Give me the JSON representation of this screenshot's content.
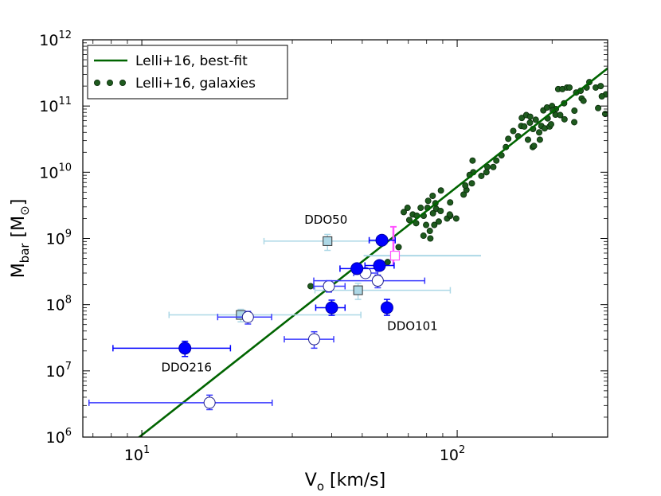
{
  "chart_data": {
    "type": "scatter",
    "xscale": "log",
    "yscale": "log",
    "xlim": [
      6.5,
      300
    ],
    "ylim": [
      1000000,
      1000000000000
    ],
    "xlabel": {
      "main": "V",
      "sub": "o",
      "rest": " [km/s]"
    },
    "ylabel": {
      "main": "M",
      "sub": "bar",
      "rest": " [M",
      "sym": "⊙",
      "end": "]"
    },
    "x_ticks": [
      {
        "value": 10,
        "base": "10",
        "exp": "1"
      },
      {
        "value": 100,
        "base": "10",
        "exp": "2"
      }
    ],
    "y_ticks": [
      {
        "value": 1000000,
        "base": "10",
        "exp": "6"
      },
      {
        "value": 10000000,
        "base": "10",
        "exp": "7"
      },
      {
        "value": 100000000,
        "base": "10",
        "exp": "8"
      },
      {
        "value": 1000000000,
        "base": "10",
        "exp": "9"
      },
      {
        "value": 10000000000,
        "base": "10",
        "exp": "10"
      },
      {
        "value": 100000000000,
        "base": "10",
        "exp": "11"
      },
      {
        "value": 1000000000000,
        "base": "10",
        "exp": "12"
      }
    ],
    "legend": {
      "position": "top-left",
      "entries": [
        {
          "label": "Lelli+16, best-fit",
          "marker": "line",
          "color": "#006400"
        },
        {
          "label": "Lelli+16, galaxies",
          "marker": "dots",
          "color": "#1e5a1e"
        }
      ]
    },
    "fit_line": {
      "name": "Lelli+16, best-fit",
      "color": "#006400",
      "slope": 3.75,
      "intercept": 2.28
    },
    "series": [
      {
        "name": "Lelli+16, galaxies",
        "color": "#1e5a1e",
        "edge": "#0a2a0a",
        "points": [
          [
            34.3,
            190000000.0
          ],
          [
            65.2,
            740000000.0
          ],
          [
            60.2,
            440000000.0
          ],
          [
            67.7,
            2500000000.0
          ],
          [
            69.6,
            2900000000.0
          ],
          [
            72.3,
            2300000000.0
          ],
          [
            74.5,
            2200000000.0
          ],
          [
            70.5,
            1900000000.0
          ],
          [
            74.1,
            1700000000.0
          ],
          [
            76.6,
            2900000000.0
          ],
          [
            79.7,
            1600000000.0
          ],
          [
            80.9,
            3700000000.0
          ],
          [
            85.3,
            3400000000.0
          ],
          [
            83.6,
            4400000000.0
          ],
          [
            88.8,
            5300000000.0
          ],
          [
            80.5,
            2900000000.0
          ],
          [
            78.3,
            2200000000.0
          ],
          [
            85.8,
            2800000000.0
          ],
          [
            88.6,
            2600000000.0
          ],
          [
            95.0,
            3500000000.0
          ],
          [
            92.9,
            2000000000.0
          ],
          [
            83.8,
            2400000000.0
          ],
          [
            81.9,
            1300000000.0
          ],
          [
            78.2,
            1100000000.0
          ],
          [
            82.2,
            1000000000.0
          ],
          [
            84.6,
            1600000000.0
          ],
          [
            87.4,
            1800000000.0
          ],
          [
            95.1,
            2200000000.0
          ],
          [
            94.7,
            2300000000.0
          ],
          [
            99.3,
            2000000000.0
          ],
          [
            104.8,
            4600000000.0
          ],
          [
            107.0,
            5400000000.0
          ],
          [
            106.1,
            6300000000.0
          ],
          [
            111.3,
            6800000000.0
          ],
          [
            112.5,
            10000000000.0
          ],
          [
            109.5,
            9100000000.0
          ],
          [
            111.9,
            15000000000.0
          ],
          [
            119.3,
            8800000000.0
          ],
          [
            124.7,
            12000000000.0
          ],
          [
            123.8,
            10000000000.0
          ],
          [
            130.2,
            12000000000.0
          ],
          [
            133.1,
            15000000000.0
          ],
          [
            138.2,
            18000000000.0
          ],
          [
            142.7,
            24000000000.0
          ],
          [
            145.2,
            32000000000.0
          ],
          [
            150.6,
            42000000000.0
          ],
          [
            156.1,
            35000000000.0
          ],
          [
            159.6,
            50000000000.0
          ],
          [
            160.3,
            66000000000.0
          ],
          [
            163.2,
            49000000000.0
          ],
          [
            165.6,
            73000000000.0
          ],
          [
            167.7,
            31000000000.0
          ],
          [
            170.1,
            56000000000.0
          ],
          [
            170.4,
            69000000000.0
          ],
          [
            173.6,
            24000000000.0
          ],
          [
            174.0,
            45000000000.0
          ],
          [
            175.2,
            25000000000.0
          ],
          [
            177.5,
            62000000000.0
          ],
          [
            182.0,
            40000000000.0
          ],
          [
            182.9,
            31000000000.0
          ],
          [
            184.9,
            50000000000.0
          ],
          [
            187.6,
            86000000000.0
          ],
          [
            189.4,
            46000000000.0
          ],
          [
            192.6,
            95000000000.0
          ],
          [
            193.6,
            65000000000.0
          ],
          [
            196.4,
            49000000000.0
          ],
          [
            198.5,
            53000000000.0
          ],
          [
            199.9,
            100000000000.0
          ],
          [
            205.0,
            74000000000.0
          ],
          [
            205.6,
            90000000000.0
          ],
          [
            209.1,
            180000000000.0
          ],
          [
            212.2,
            73000000000.0
          ],
          [
            215.6,
            180000000000.0
          ],
          [
            218.3,
            110000000000.0
          ],
          [
            222.9,
            190000000000.0
          ],
          [
            227.0,
            190000000000.0
          ],
          [
            235.1,
            57000000000.0
          ],
          [
            235.4,
            85000000000.0
          ],
          [
            238.4,
            160000000000.0
          ],
          [
            246.3,
            170000000000.0
          ],
          [
            248.2,
            130000000000.0
          ],
          [
            251.5,
            120000000000.0
          ],
          [
            257.3,
            190000000000.0
          ],
          [
            262.5,
            230000000000.0
          ],
          [
            275.0,
            190000000000.0
          ],
          [
            279.9,
            93000000000.0
          ],
          [
            285.1,
            200000000000.0
          ],
          [
            296.2,
            150000000000.0
          ],
          [
            294.7,
            76000000000.0
          ],
          [
            287.5,
            140000000000.0
          ],
          [
            218.9,
            63000000000.0
          ],
          [
            201.0,
            86000000000.0
          ]
        ]
      },
      {
        "name": "filled blue",
        "color": "#0000ff",
        "points": [
          {
            "x": 13.7,
            "y": 22000000.0,
            "xlo": 8.1,
            "xhi": 19.1,
            "ylo": 16500000.0,
            "yhi": 28000000.0
          },
          {
            "x": 40.0,
            "y": 90000000.0,
            "xlo": 35.6,
            "xhi": 44.1,
            "ylo": 69000000.0,
            "yhi": 117000000.0
          },
          {
            "x": 48.1,
            "y": 350000000.0,
            "xlo": 42.5,
            "xhi": 55.3
          },
          {
            "x": 56.7,
            "y": 390000000.0,
            "xlo": 51.0,
            "xhi": 63.1
          },
          {
            "x": 57.7,
            "y": 940000000.0,
            "xlo": 52.6,
            "xhi": 63.6
          },
          {
            "x": 59.9,
            "y": 90000000.0,
            "ylo": 69000000.0,
            "yhi": 120000000.0
          }
        ]
      },
      {
        "name": "open circles",
        "color": "#3a3aff",
        "points": [
          {
            "x": 16.4,
            "y": 3300000.0,
            "xlo": 6.8,
            "xhi": 25.9,
            "ylo": 2600000.0,
            "yhi": 4300000.0
          },
          {
            "x": 21.7,
            "y": 65000000.0,
            "xlo": 17.4,
            "xhi": 25.8,
            "ylo": 51000000.0,
            "yhi": 79000000.0
          },
          {
            "x": 35.2,
            "y": 30000000.0,
            "xlo": 28.3,
            "xhi": 40.6,
            "ylo": 22000000.0,
            "yhi": 39000000.0
          },
          {
            "x": 39.2,
            "y": 190000000.0,
            "xlo": 35.1,
            "xhi": 44.1,
            "ylo": 155000000.0,
            "yhi": 230000000.0
          },
          {
            "x": 51.2,
            "y": 300000000.0,
            "xlo": 47.0,
            "xhi": 56.0
          },
          {
            "x": 56.0,
            "y": 230000000.0,
            "xlo": 35.1,
            "xhi": 78.9,
            "ylo": 180000000.0,
            "yhi": 280000000.0
          }
        ]
      },
      {
        "name": "light-blue squares",
        "color": "#add8e6",
        "points": [
          {
            "x": 20.6,
            "y": 70000000.0,
            "xlo": 12.2,
            "xhi": 49.5,
            "ylo": 55000000.0,
            "yhi": 85000000.0
          },
          {
            "x": 38.8,
            "y": 910000000.0,
            "xlo": 24.4,
            "xhi": 59.9,
            "ylo": 660000000.0,
            "yhi": 1150000000.0
          },
          {
            "x": 48.5,
            "y": 165000000.0,
            "xlo": 35.4,
            "xhi": 95.1,
            "ylo": 120000000.0,
            "yhi": 210000000.0
          }
        ]
      },
      {
        "name": "magenta square",
        "color": "#ff55ff",
        "points": [
          {
            "x": 63.5,
            "y": 550000000.0,
            "xlo": 50.5,
            "xhi": 119.0,
            "ylo": 390000000.0,
            "yhi": 1500000000.0
          }
        ]
      }
    ],
    "annotations": [
      {
        "text": "DDO50",
        "x": 38.8,
        "y": 910000000.0
      },
      {
        "text": "DDO101",
        "x": 59.9,
        "y": 90000000.0
      },
      {
        "text": "DDO216",
        "x": 13.7,
        "y": 22000000.0
      }
    ]
  }
}
